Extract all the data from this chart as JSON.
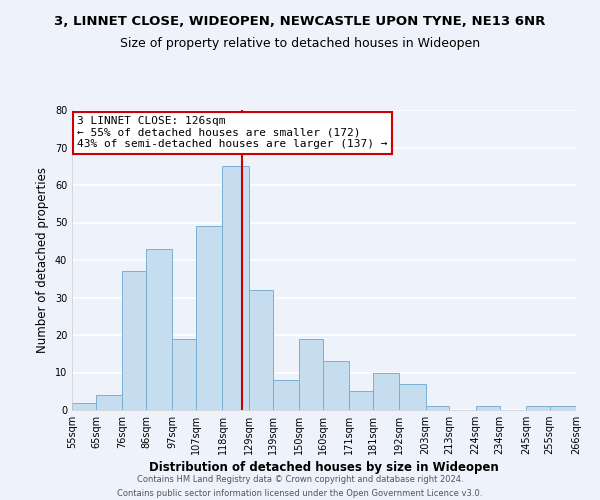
{
  "title": "3, LINNET CLOSE, WIDEOPEN, NEWCASTLE UPON TYNE, NE13 6NR",
  "subtitle": "Size of property relative to detached houses in Wideopen",
  "xlabel": "Distribution of detached houses by size in Wideopen",
  "ylabel": "Number of detached properties",
  "bar_color": "#c6ddf0",
  "bar_edge_color": "#7bafd4",
  "bin_edges": [
    55,
    65,
    76,
    86,
    97,
    107,
    118,
    129,
    139,
    150,
    160,
    171,
    181,
    192,
    203,
    213,
    224,
    234,
    245,
    255,
    266
  ],
  "bin_labels": [
    "55sqm",
    "65sqm",
    "76sqm",
    "86sqm",
    "97sqm",
    "107sqm",
    "118sqm",
    "129sqm",
    "139sqm",
    "150sqm",
    "160sqm",
    "171sqm",
    "181sqm",
    "192sqm",
    "203sqm",
    "213sqm",
    "224sqm",
    "234sqm",
    "245sqm",
    "255sqm",
    "266sqm"
  ],
  "counts": [
    2,
    4,
    37,
    43,
    19,
    49,
    65,
    32,
    8,
    19,
    13,
    5,
    10,
    7,
    1,
    0,
    1,
    0,
    1,
    1
  ],
  "vline_x": 126,
  "vline_color": "#cc0000",
  "annotation_title": "3 LINNET CLOSE: 126sqm",
  "annotation_line1": "← 55% of detached houses are smaller (172)",
  "annotation_line2": "43% of semi-detached houses are larger (137) →",
  "annotation_box_color": "#ffffff",
  "annotation_box_edge": "#cc0000",
  "ylim": [
    0,
    80
  ],
  "yticks": [
    0,
    10,
    20,
    30,
    40,
    50,
    60,
    70,
    80
  ],
  "footer_line1": "Contains HM Land Registry data © Crown copyright and database right 2024.",
  "footer_line2": "Contains public sector information licensed under the Open Government Licence v3.0.",
  "background_color": "#eef2fb",
  "plot_background": "#eef2fb",
  "grid_color": "#ffffff",
  "title_fontsize": 9.5,
  "subtitle_fontsize": 9,
  "axis_label_fontsize": 8.5,
  "tick_fontsize": 7,
  "footer_fontsize": 6,
  "annotation_fontsize": 8
}
